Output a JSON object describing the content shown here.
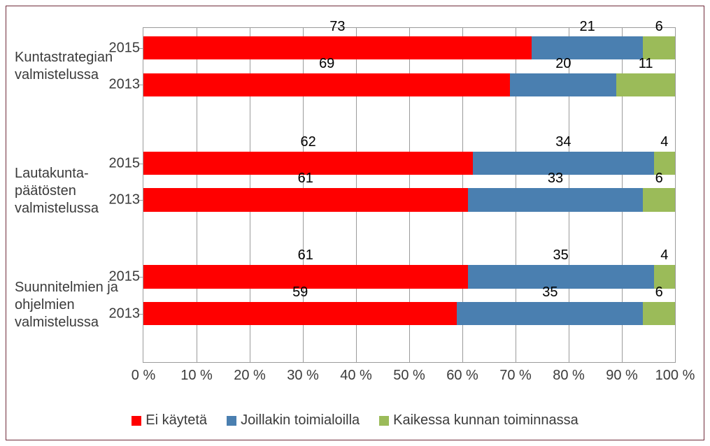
{
  "chart": {
    "type": "stacked-horizontal-bar",
    "background_color": "#ffffff",
    "border_color": "#6f2b3a",
    "grid_color": "#9b9b9b",
    "text_color": "#3b3b3b",
    "value_label_color": "#000000",
    "font_family": "Segoe UI",
    "body_fontsize_pt": 15,
    "xlim": [
      0,
      100
    ],
    "xtick_step": 10,
    "xticks": [
      {
        "v": 0,
        "label": "0 %"
      },
      {
        "v": 10,
        "label": "10 %"
      },
      {
        "v": 20,
        "label": "20 %"
      },
      {
        "v": 30,
        "label": "30 %"
      },
      {
        "v": 40,
        "label": "40 %"
      },
      {
        "v": 50,
        "label": "50 %"
      },
      {
        "v": 60,
        "label": "60 %"
      },
      {
        "v": 70,
        "label": "70 %"
      },
      {
        "v": 80,
        "label": "80 %"
      },
      {
        "v": 90,
        "label": "90 %"
      },
      {
        "v": 100,
        "label": "100 %"
      }
    ],
    "series": [
      {
        "key": "s1",
        "label": "Ei käytetä",
        "color": "#ff0000"
      },
      {
        "key": "s2",
        "label": "Joillakin toimialoilla",
        "color": "#4a7fb0"
      },
      {
        "key": "s3",
        "label": "Kaikessa kunnan toiminnassa",
        "color": "#9bbb59"
      }
    ],
    "groups": [
      {
        "key": "g1",
        "label": "Kuntastrategian valmistelussa",
        "rows": [
          {
            "year": "2015",
            "values": {
              "s1": 73,
              "s2": 21,
              "s3": 6
            }
          },
          {
            "year": "2013",
            "values": {
              "s1": 69,
              "s2": 20,
              "s3": 11
            }
          }
        ]
      },
      {
        "key": "g2",
        "label": "Lautakunta­päätösten valmistelussa",
        "rows": [
          {
            "year": "2015",
            "values": {
              "s1": 62,
              "s2": 34,
              "s3": 4
            }
          },
          {
            "year": "2013",
            "values": {
              "s1": 61,
              "s2": 33,
              "s3": 6
            }
          }
        ]
      },
      {
        "key": "g3",
        "label": "Suunnitelmien ja ohjelmien valmistelussa",
        "rows": [
          {
            "year": "2015",
            "values": {
              "s1": 61,
              "s2": 35,
              "s3": 4
            }
          },
          {
            "year": "2013",
            "values": {
              "s1": 59,
              "s2": 35,
              "s3": 6
            }
          }
        ]
      }
    ],
    "layout": {
      "bar_height_pct": 7.0,
      "group_top_pct": [
        2.5,
        37.0,
        71.0
      ],
      "row_gap_pct": 4.0,
      "group_label_offset_pt": 0
    }
  }
}
